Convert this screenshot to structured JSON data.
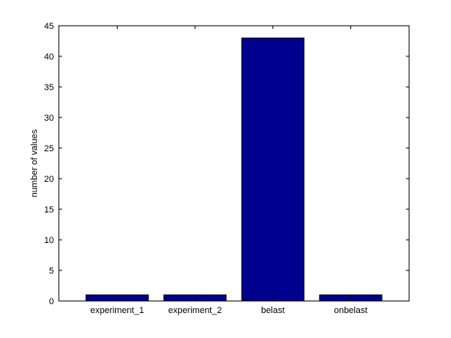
{
  "chart_data": {
    "type": "bar",
    "categories": [
      "experiment_1",
      "experiment_2",
      "belast",
      "onbelast"
    ],
    "values": [
      1,
      1,
      43,
      1
    ],
    "title": "",
    "xlabel": "",
    "ylabel": "number of values",
    "ylim": [
      0,
      45
    ],
    "yticks": [
      0,
      5,
      10,
      15,
      20,
      25,
      30,
      35,
      40,
      45
    ],
    "grid": false,
    "legend": "none",
    "bar_color": "#00008f",
    "edge_color": "#000000"
  }
}
